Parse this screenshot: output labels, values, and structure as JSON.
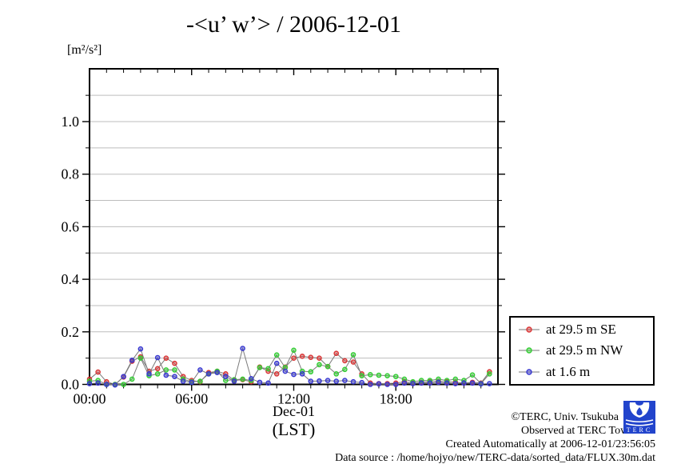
{
  "title": "-<u’ w’> / 2006-12-01",
  "y_unit_label": "[m²/s²]",
  "x_axis": {
    "tick_labels": [
      "00:00",
      "06:00",
      "12:00",
      "18:00"
    ],
    "tick_hours": [
      0,
      6,
      12,
      18
    ],
    "date_label": "Dec-01",
    "tz_label": "(LST)"
  },
  "y_axis": {
    "tick_labels": [
      "0.0",
      "0.2",
      "0.4",
      "0.6",
      "0.8",
      "1.0"
    ],
    "tick_values": [
      0,
      0.2,
      0.4,
      0.6,
      0.8,
      1.0
    ]
  },
  "legend": {
    "items": [
      {
        "label": "at 29.5 m SE",
        "color": "#d93535"
      },
      {
        "label": "at 29.5 m NW",
        "color": "#33cc33"
      },
      {
        "label": "at 1.6 m",
        "color": "#3838d0"
      }
    ]
  },
  "footer": {
    "line1": "©TERC, Univ. Tsukuba",
    "line2": "Observed at TERC Tower site",
    "line3": "Created Automatically at 2006-12-01/23:56:05",
    "line4": "Data source : /home/hojyo/new/TERC-data/sorted_data/FLUX.30m.dat",
    "logo_text": "TERC",
    "logo_color": "#2244cc"
  },
  "chart_data": {
    "type": "line",
    "title": "-<u’ w’> / 2006-12-01",
    "xlabel": "Dec-01 (LST)",
    "ylabel": "[m²/s²]",
    "xlim_hours": [
      0,
      24
    ],
    "ylim": [
      0,
      1.2
    ],
    "grid": true,
    "grid_step": 0.1,
    "legend_position": "right-bottom-outside",
    "line_color": "#7a7a7a",
    "grid_color": "#bdbdbd",
    "x_hours": [
      0,
      0.5,
      1,
      1.5,
      2,
      2.5,
      3,
      3.5,
      4,
      4.5,
      5,
      5.5,
      6,
      6.5,
      7,
      7.5,
      8,
      8.5,
      9,
      9.5,
      10,
      10.5,
      11,
      11.5,
      12,
      12.5,
      13,
      13.5,
      14,
      14.5,
      15,
      15.5,
      16,
      16.5,
      17,
      17.5,
      18,
      18.5,
      19,
      19.5,
      20,
      20.5,
      21,
      21.5,
      22,
      22.5,
      23,
      23.5
    ],
    "series": [
      {
        "name": "at 29.5 m SE",
        "color": "#d93535",
        "values": [
          0.02,
          0.047,
          0.01,
          0.0,
          0.028,
          0.088,
          0.105,
          0.05,
          0.06,
          0.1,
          0.08,
          0.03,
          0.015,
          0.01,
          0.045,
          0.05,
          0.04,
          0.015,
          0.018,
          0.01,
          0.066,
          0.05,
          0.04,
          0.066,
          0.1,
          0.107,
          0.103,
          0.1,
          0.068,
          0.118,
          0.09,
          0.085,
          0.04,
          0.005,
          0.003,
          0.003,
          0.005,
          0.01,
          0.005,
          0.008,
          0.01,
          0.012,
          0.01,
          0.008,
          0.005,
          0.008,
          0.005,
          0.048
        ]
      },
      {
        "name": "at 29.5 m NW",
        "color": "#33cc33",
        "values": [
          0.012,
          0.015,
          0.0,
          0.0,
          0.0,
          0.02,
          0.1,
          0.033,
          0.04,
          0.055,
          0.055,
          0.02,
          0.01,
          0.012,
          0.04,
          0.05,
          0.015,
          0.018,
          0.02,
          0.015,
          0.064,
          0.06,
          0.112,
          0.064,
          0.13,
          0.05,
          0.048,
          0.075,
          0.068,
          0.04,
          0.057,
          0.113,
          0.033,
          0.037,
          0.035,
          0.033,
          0.03,
          0.02,
          0.01,
          0.015,
          0.015,
          0.02,
          0.015,
          0.02,
          0.015,
          0.036,
          0.003,
          0.04
        ]
      },
      {
        "name": "at 1.6 m",
        "color": "#3838d0",
        "values": [
          0.003,
          0.005,
          0.0,
          -0.002,
          0.03,
          0.092,
          0.135,
          0.04,
          0.102,
          0.035,
          0.03,
          0.012,
          0.008,
          0.055,
          0.04,
          0.045,
          0.03,
          0.012,
          0.137,
          0.022,
          0.008,
          0.005,
          0.08,
          0.05,
          0.038,
          0.04,
          0.012,
          0.013,
          0.015,
          0.012,
          0.015,
          0.01,
          0.007,
          0.0,
          0.002,
          0.0,
          0.0,
          0.005,
          0.003,
          0.005,
          0.005,
          0.008,
          0.005,
          0.003,
          0.005,
          0.005,
          0.002,
          0.003
        ]
      }
    ]
  }
}
